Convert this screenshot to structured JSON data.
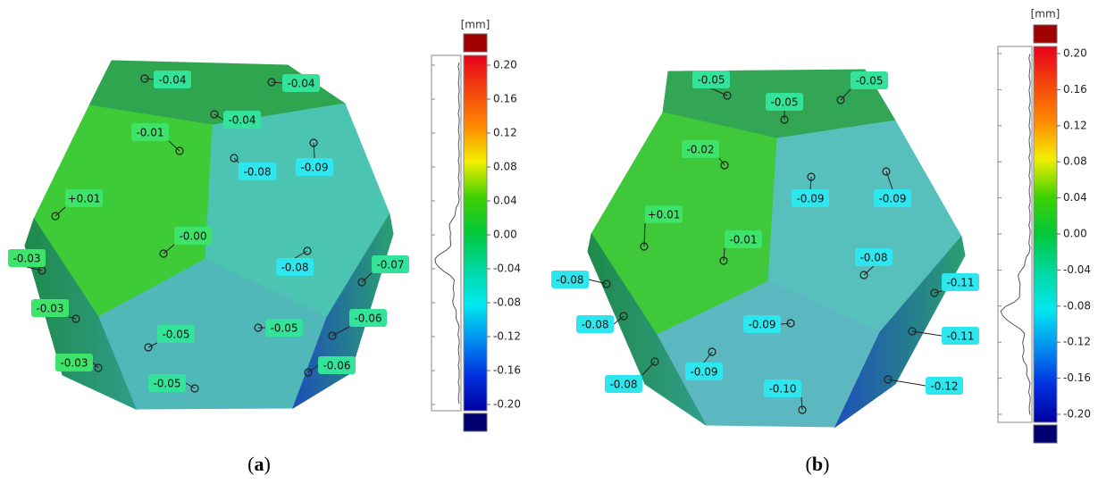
{
  "panels": [
    {
      "caption": {
        "open": "(",
        "letter": "a",
        "close": ")"
      },
      "labels": [
        "-0.04",
        "-0.04",
        "-0.04",
        "-0.01",
        "-0.08",
        "-0.09",
        "+0.01",
        "-0.00",
        "-0.08",
        "-0.03",
        "-0.07",
        "-0.03",
        "-0.06",
        "-0.05",
        "-0.05",
        "-0.03",
        "-0.06",
        "-0.05"
      ],
      "colorbar": {
        "unit": "[mm]",
        "ticks": [
          "0.20",
          "0.16",
          "0.12",
          "0.08",
          "0.04",
          "0.00",
          "-0.04",
          "-0.08",
          "-0.12",
          "-0.16",
          "-0.20"
        ]
      }
    },
    {
      "caption": {
        "open": "(",
        "letter": "b",
        "close": ")"
      },
      "labels": [
        "-0.05",
        "-0.05",
        "-0.05",
        "-0.02",
        "-0.09",
        "-0.09",
        "+0.01",
        "-0.01",
        "-0.08",
        "-0.08",
        "-0.11",
        "-0.08",
        "-0.09",
        "-0.11",
        "-0.09",
        "-0.08",
        "-0.10",
        "-0.12"
      ],
      "colorbar": {
        "unit": "[mm]",
        "ticks": [
          "0.20",
          "0.16",
          "0.12",
          "0.08",
          "0.04",
          "0.00",
          "-0.04",
          "-0.08",
          "-0.12",
          "-0.16",
          "-0.20"
        ]
      }
    }
  ]
}
